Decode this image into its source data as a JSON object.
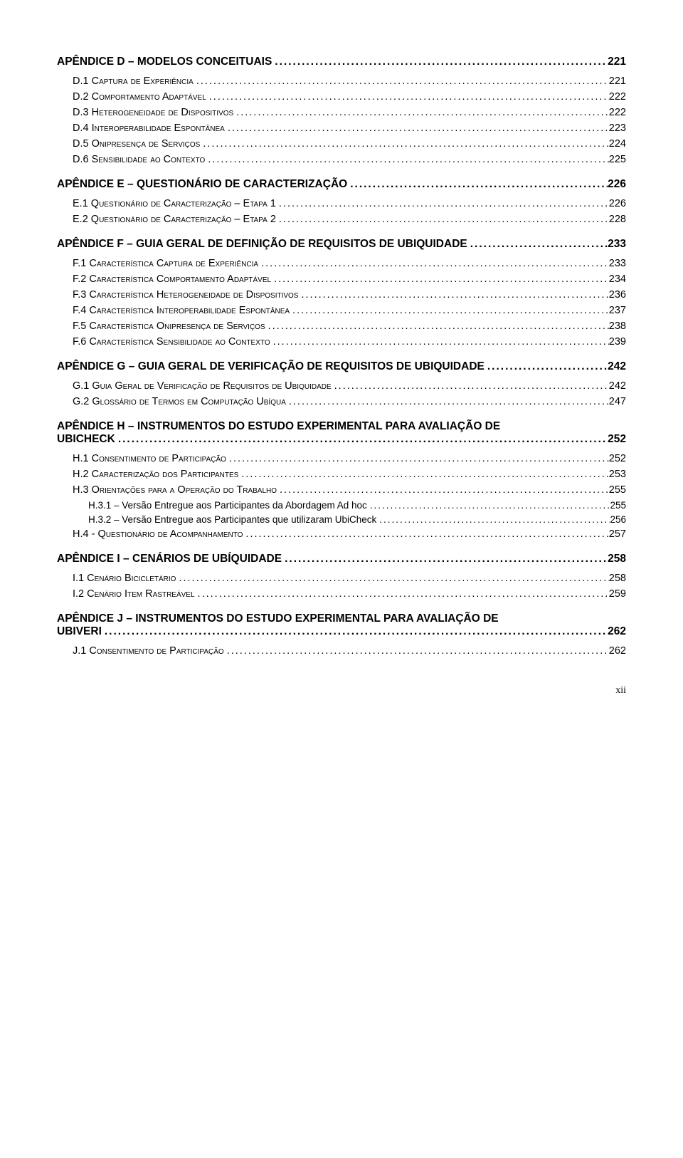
{
  "page_number": "xii",
  "entries": [
    {
      "level": 1,
      "label": "APÊNDICE D – MODELOS CONCEITUAIS",
      "page": "221"
    },
    {
      "level": 2,
      "label": "D.1 Captura de Experiência",
      "page": "221"
    },
    {
      "level": 2,
      "label": "D.2 Comportamento Adaptável",
      "page": "222"
    },
    {
      "level": 2,
      "label": "D.3 Heterogeneidade de Dispositivos",
      "page": "222"
    },
    {
      "level": 2,
      "label": "D.4 Interoperabilidade Espontânea",
      "page": "223"
    },
    {
      "level": 2,
      "label": "D.5 Onipresença de Serviços",
      "page": "224"
    },
    {
      "level": 2,
      "label": "D.6 Sensibilidade ao Contexto",
      "page": "225"
    },
    {
      "level": 1,
      "label": "APÊNDICE E – QUESTIONÁRIO DE CARACTERIZAÇÃO",
      "page": "226"
    },
    {
      "level": 2,
      "label": "E.1 Questionário de Caracterização – Etapa 1",
      "page": "226"
    },
    {
      "level": 2,
      "label": "E.2 Questionário de Caracterização – Etapa 2",
      "page": "228"
    },
    {
      "level": 1,
      "label": "APÊNDICE F – GUIA GERAL DE DEFINIÇÃO DE REQUISITOS DE UBIQUIDADE",
      "page": "233"
    },
    {
      "level": 2,
      "label": "F.1 Característica Captura de Experiência",
      "page": "233"
    },
    {
      "level": 2,
      "label": "F.2 Característica Comportamento Adaptável",
      "page": "234"
    },
    {
      "level": 2,
      "label": "F.3 Característica Heterogeneidade de Dispositivos",
      "page": "236"
    },
    {
      "level": 2,
      "label": "F.4 Característica Interoperabilidade Espontânea",
      "page": "237"
    },
    {
      "level": 2,
      "label": "F.5 Característica Onipresença de Serviços",
      "page": "238"
    },
    {
      "level": 2,
      "label": "F.6 Característica Sensibilidade ao Contexto",
      "page": "239"
    },
    {
      "level": 1,
      "label": "APÊNDICE G – GUIA GERAL DE VERIFICAÇÃO DE REQUISITOS DE UBIQUIDADE",
      "page": "242"
    },
    {
      "level": 2,
      "label": "G.1 Guia Geral de Verificação de Requisitos de Ubiquidade",
      "page": "242"
    },
    {
      "level": 2,
      "label": "G.2 Glossário de Termos em Computação Ubíqua",
      "page": "247"
    },
    {
      "level": 1,
      "label": "APÊNDICE H – INSTRUMENTOS DO ESTUDO EXPERIMENTAL PARA AVALIAÇÃO DE UBICHECK",
      "page": "252"
    },
    {
      "level": 2,
      "label": "H.1 Consentimento de Participação",
      "page": "252"
    },
    {
      "level": 2,
      "label": "H.2 Caracterização dos Participantes",
      "page": "253"
    },
    {
      "level": 2,
      "label": "H.3 Orientações para a Operação do Trabalho",
      "page": "255"
    },
    {
      "level": 3,
      "label": "H.3.1 – Versão Entregue aos Participantes da Abordagem Ad hoc",
      "page": "255"
    },
    {
      "level": 3,
      "label": "H.3.2 – Versão Entregue aos Participantes que utilizaram UbiCheck",
      "page": "256"
    },
    {
      "level": 2,
      "label": "H.4 - Questionário de Acompanhamento",
      "page": "257"
    },
    {
      "level": 1,
      "label": "APÊNDICE I – CENÁRIOS DE UBÍQUIDADE",
      "page": "258"
    },
    {
      "level": 2,
      "label": "I.1 Cenário Bicicletário",
      "page": "258"
    },
    {
      "level": 2,
      "label": "I.2 Cenário Item Rastreável",
      "page": "259"
    },
    {
      "level": 1,
      "label": "APÊNDICE J – INSTRUMENTOS DO ESTUDO EXPERIMENTAL PARA AVALIAÇÃO DE UBIVERI",
      "page": "262"
    },
    {
      "level": 2,
      "label": "J.1 Consentimento de Participação",
      "page": "262"
    }
  ]
}
